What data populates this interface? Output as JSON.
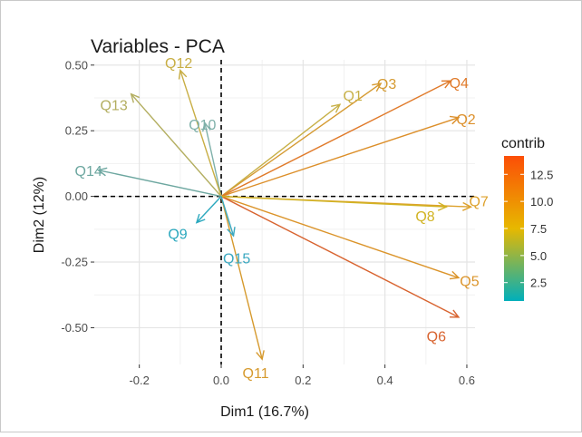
{
  "chart_data": {
    "type": "scatter",
    "title": "Variables - PCA",
    "xlabel": "Dim1 (16.7%)",
    "ylabel": "Dim2 (12%)",
    "xlim": [
      -0.31,
      0.62
    ],
    "ylim": [
      -0.64,
      0.52
    ],
    "xticks": [
      -0.2,
      0.0,
      0.2,
      0.4,
      0.6
    ],
    "xtick_labels": [
      "-0.2",
      "0.0",
      "0.2",
      "0.4",
      "0.6"
    ],
    "yticks": [
      -0.5,
      -0.25,
      0.0,
      0.25,
      0.5
    ],
    "ytick_labels": [
      "-0.50",
      "-0.25",
      "0.00",
      "0.25",
      "0.50"
    ],
    "grid": true,
    "reference_lines": {
      "x": 0,
      "y": 0,
      "style": "dashed"
    },
    "legend": {
      "title": "contrib",
      "position": "right",
      "labels": [
        "12.5",
        "10.0",
        "7.5",
        "5.0",
        "2.5"
      ],
      "values": [
        12.5,
        10.0,
        7.5,
        5.0,
        2.5
      ],
      "range": [
        0.8,
        14.2
      ],
      "gradient_colors": [
        "#00AFBB",
        "#E7B800",
        "#FC4E07"
      ]
    },
    "arrows": [
      {
        "label": "Q1",
        "x": 0.29,
        "y": 0.35,
        "contrib": 7.0,
        "color": "#C7B047"
      },
      {
        "label": "Q2",
        "x": 0.58,
        "y": 0.3,
        "contrib": 10.5,
        "color": "#DC8F2A"
      },
      {
        "label": "Q3",
        "x": 0.39,
        "y": 0.43,
        "contrib": 9.5,
        "color": "#D59A31"
      },
      {
        "label": "Q4",
        "x": 0.56,
        "y": 0.44,
        "contrib": 11.5,
        "color": "#E07A2A"
      },
      {
        "label": "Q5",
        "x": 0.58,
        "y": -0.31,
        "contrib": 10.0,
        "color": "#DB942A"
      },
      {
        "label": "Q6",
        "x": 0.58,
        "y": -0.46,
        "contrib": 12.5,
        "color": "#D8632F"
      },
      {
        "label": "Q7",
        "x": 0.61,
        "y": -0.04,
        "contrib": 8.5,
        "color": "#DDA12B"
      },
      {
        "label": "Q8",
        "x": 0.55,
        "y": -0.04,
        "contrib": 6.0,
        "color": "#D1B322"
      },
      {
        "label": "Q9",
        "x": -0.06,
        "y": -0.1,
        "contrib": 1.0,
        "color": "#2AA8BE"
      },
      {
        "label": "Q10",
        "x": -0.04,
        "y": 0.28,
        "contrib": 3.5,
        "color": "#7EB0A9"
      },
      {
        "label": "Q11",
        "x": 0.1,
        "y": -0.62,
        "contrib": 9.5,
        "color": "#D69A2E"
      },
      {
        "label": "Q12",
        "x": -0.1,
        "y": 0.48,
        "contrib": 6.0,
        "color": "#C8AE44"
      },
      {
        "label": "Q13",
        "x": -0.22,
        "y": 0.39,
        "contrib": 5.5,
        "color": "#B3AE60"
      },
      {
        "label": "Q14",
        "x": -0.3,
        "y": 0.1,
        "contrib": 3.0,
        "color": "#6DA7A0"
      },
      {
        "label": "Q15",
        "x": 0.03,
        "y": -0.15,
        "contrib": 1.5,
        "color": "#3AA8C0"
      }
    ]
  }
}
